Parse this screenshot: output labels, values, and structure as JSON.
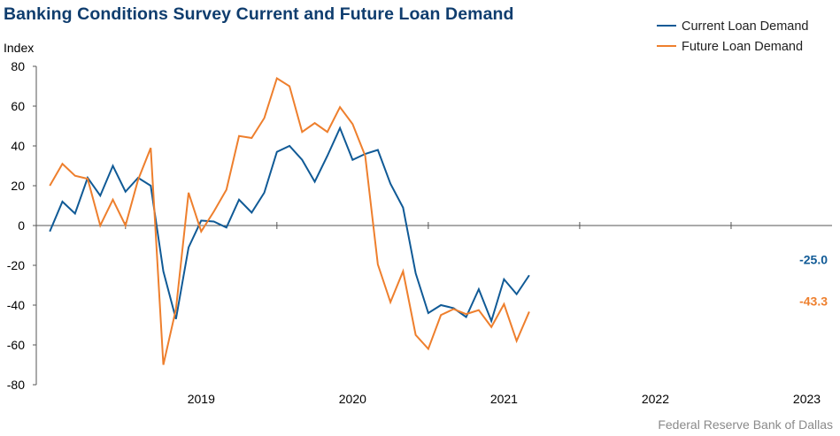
{
  "title": "Banking Conditions Survey Current and Future Loan Demand",
  "source": "Federal Reserve Bank of Dallas",
  "colors": {
    "current": "#105a96",
    "future": "#ee7f2d",
    "title": "#0f3d6e"
  },
  "chart_data": {
    "type": "line",
    "title": "Banking Conditions Survey Current and Future Loan Demand",
    "ylabel": "Index",
    "ylim": [
      -80,
      80
    ],
    "yticks": [
      -80,
      -60,
      -40,
      -20,
      0,
      20,
      40,
      60,
      80
    ],
    "xlim": [
      "2018-06",
      "2023-09"
    ],
    "x_tick_labels": [
      "2019",
      "2020",
      "2021",
      "2022",
      "2023"
    ],
    "grid": false,
    "legend": "top-right",
    "series": [
      {
        "name": "Current Loan Demand",
        "color": "#105a96",
        "end_label": "-25.0",
        "points": [
          [
            "2018-07",
            -3
          ],
          [
            "2018-08",
            12
          ],
          [
            "2018-09",
            6
          ],
          [
            "2018-10",
            24
          ],
          [
            "2018-11",
            15
          ],
          [
            "2018-12",
            30
          ],
          [
            "2019-01",
            17
          ],
          [
            "2019-02",
            24
          ],
          [
            "2019-03",
            20
          ],
          [
            "2019-04",
            -23
          ],
          [
            "2019-05",
            -47
          ],
          [
            "2019-06",
            -11
          ],
          [
            "2019-07",
            2.5
          ],
          [
            "2019-08",
            2
          ],
          [
            "2019-09",
            -1
          ],
          [
            "2019-10",
            13
          ],
          [
            "2019-11",
            6.5
          ],
          [
            "2019-12",
            16.5
          ],
          [
            "2020-01",
            37
          ],
          [
            "2020-02",
            40
          ],
          [
            "2020-03",
            33
          ],
          [
            "2020-04",
            22
          ],
          [
            "2020-05",
            35
          ],
          [
            "2020-06",
            49
          ],
          [
            "2020-07",
            33
          ],
          [
            "2020-08",
            36
          ],
          [
            "2020-09",
            38
          ],
          [
            "2020-10",
            21
          ],
          [
            "2020-11",
            9
          ],
          [
            "2020-12",
            -24
          ],
          [
            "2021-01",
            -44
          ],
          [
            "2021-02",
            -40
          ],
          [
            "2021-03",
            -41.5
          ],
          [
            "2021-04",
            -46
          ],
          [
            "2021-05",
            -32
          ],
          [
            "2021-06",
            -48
          ],
          [
            "2021-07",
            -27
          ],
          [
            "2021-08",
            -34.5
          ],
          [
            "2021-09",
            -25.0
          ]
        ]
      },
      {
        "name": "Future Loan Demand",
        "color": "#ee7f2d",
        "end_label": "-43.3",
        "points": [
          [
            "2018-07",
            20
          ],
          [
            "2018-08",
            31
          ],
          [
            "2018-09",
            25
          ],
          [
            "2018-10",
            23.5
          ],
          [
            "2018-11",
            0
          ],
          [
            "2018-12",
            13
          ],
          [
            "2019-01",
            0
          ],
          [
            "2019-02",
            23
          ],
          [
            "2019-03",
            39
          ],
          [
            "2019-04",
            -70
          ],
          [
            "2019-05",
            -42
          ],
          [
            "2019-06",
            16.5
          ],
          [
            "2019-07",
            -3
          ],
          [
            "2019-08",
            7
          ],
          [
            "2019-09",
            18
          ],
          [
            "2019-10",
            45
          ],
          [
            "2019-11",
            44
          ],
          [
            "2019-12",
            54
          ],
          [
            "2020-01",
            74
          ],
          [
            "2020-02",
            70
          ],
          [
            "2020-03",
            47
          ],
          [
            "2020-04",
            51.5
          ],
          [
            "2020-05",
            47
          ],
          [
            "2020-06",
            59.5
          ],
          [
            "2020-07",
            51
          ],
          [
            "2020-08",
            35
          ],
          [
            "2020-09",
            -19.5
          ],
          [
            "2020-10",
            -38.5
          ],
          [
            "2020-11",
            -23
          ],
          [
            "2020-12",
            -55
          ],
          [
            "2021-01",
            -62
          ],
          [
            "2021-02",
            -45
          ],
          [
            "2021-03",
            -42
          ],
          [
            "2021-04",
            -44.5
          ],
          [
            "2021-05",
            -42.5
          ],
          [
            "2021-06",
            -51
          ],
          [
            "2021-07",
            -39.5
          ],
          [
            "2021-08",
            -58
          ],
          [
            "2021-09",
            -43.3
          ]
        ]
      }
    ]
  }
}
